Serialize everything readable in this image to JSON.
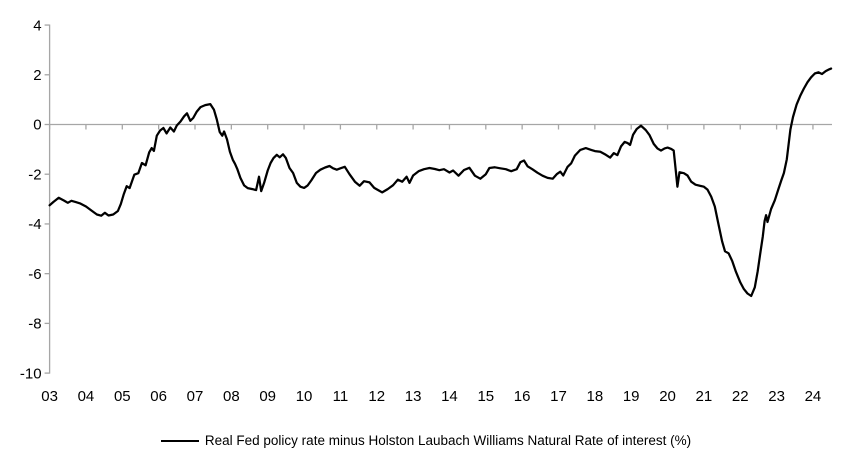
{
  "chart_data": {
    "type": "line",
    "title": "",
    "legend": "Real Fed policy rate minus Holston Laubach Williams Natural Rate of interest (%)",
    "line_color": "#000000",
    "axis_color": "#a6a6a6",
    "text_color": "#000000",
    "grid": "zero-line-only",
    "legend_position": "bottom-center",
    "y_axis": {
      "ticks": [
        4,
        2,
        0,
        -2,
        -4,
        -6,
        -8,
        -10
      ],
      "max": 4,
      "min": -10
    },
    "x_axis": {
      "tick_labels": [
        "03",
        "04",
        "05",
        "06",
        "07",
        "08",
        "09",
        "10",
        "11",
        "12",
        "13",
        "14",
        "15",
        "16",
        "17",
        "18",
        "19",
        "20",
        "21",
        "22",
        "23",
        "24"
      ],
      "tick_years": [
        2003,
        2004,
        2005,
        2006,
        2007,
        2008,
        2009,
        2010,
        2011,
        2012,
        2013,
        2014,
        2015,
        2016,
        2017,
        2018,
        2019,
        2020,
        2021,
        2022,
        2023,
        2024
      ]
    },
    "series": [
      {
        "name": "Real Fed policy rate minus Holston Laubach Williams Natural Rate of interest (%)",
        "points": [
          [
            2003.0,
            -3.25
          ],
          [
            2003.1,
            -3.12
          ],
          [
            2003.25,
            -2.95
          ],
          [
            2003.4,
            -3.06
          ],
          [
            2003.5,
            -3.15
          ],
          [
            2003.6,
            -3.07
          ],
          [
            2003.72,
            -3.12
          ],
          [
            2003.85,
            -3.18
          ],
          [
            2004.0,
            -3.3
          ],
          [
            2004.15,
            -3.46
          ],
          [
            2004.3,
            -3.62
          ],
          [
            2004.42,
            -3.67
          ],
          [
            2004.52,
            -3.55
          ],
          [
            2004.62,
            -3.66
          ],
          [
            2004.75,
            -3.62
          ],
          [
            2004.88,
            -3.48
          ],
          [
            2004.96,
            -3.2
          ],
          [
            2005.04,
            -2.8
          ],
          [
            2005.12,
            -2.48
          ],
          [
            2005.2,
            -2.56
          ],
          [
            2005.33,
            -2.02
          ],
          [
            2005.44,
            -1.96
          ],
          [
            2005.54,
            -1.55
          ],
          [
            2005.64,
            -1.64
          ],
          [
            2005.74,
            -1.12
          ],
          [
            2005.81,
            -0.95
          ],
          [
            2005.87,
            -1.06
          ],
          [
            2005.95,
            -0.45
          ],
          [
            2006.04,
            -0.24
          ],
          [
            2006.13,
            -0.14
          ],
          [
            2006.22,
            -0.36
          ],
          [
            2006.32,
            -0.12
          ],
          [
            2006.42,
            -0.28
          ],
          [
            2006.5,
            -0.04
          ],
          [
            2006.6,
            0.12
          ],
          [
            2006.7,
            0.33
          ],
          [
            2006.78,
            0.45
          ],
          [
            2006.87,
            0.15
          ],
          [
            2006.95,
            0.26
          ],
          [
            2007.05,
            0.52
          ],
          [
            2007.15,
            0.7
          ],
          [
            2007.28,
            0.78
          ],
          [
            2007.42,
            0.82
          ],
          [
            2007.52,
            0.6
          ],
          [
            2007.6,
            0.2
          ],
          [
            2007.68,
            -0.3
          ],
          [
            2007.75,
            -0.45
          ],
          [
            2007.8,
            -0.28
          ],
          [
            2007.88,
            -0.6
          ],
          [
            2007.96,
            -1.1
          ],
          [
            2008.04,
            -1.42
          ],
          [
            2008.1,
            -1.58
          ],
          [
            2008.16,
            -1.78
          ],
          [
            2008.25,
            -2.15
          ],
          [
            2008.35,
            -2.45
          ],
          [
            2008.45,
            -2.56
          ],
          [
            2008.58,
            -2.6
          ],
          [
            2008.68,
            -2.64
          ],
          [
            2008.76,
            -2.1
          ],
          [
            2008.82,
            -2.68
          ],
          [
            2008.9,
            -2.35
          ],
          [
            2009.0,
            -1.85
          ],
          [
            2009.08,
            -1.55
          ],
          [
            2009.16,
            -1.35
          ],
          [
            2009.25,
            -1.22
          ],
          [
            2009.33,
            -1.32
          ],
          [
            2009.42,
            -1.2
          ],
          [
            2009.5,
            -1.35
          ],
          [
            2009.6,
            -1.75
          ],
          [
            2009.7,
            -1.95
          ],
          [
            2009.8,
            -2.35
          ],
          [
            2009.9,
            -2.5
          ],
          [
            2010.0,
            -2.55
          ],
          [
            2010.1,
            -2.45
          ],
          [
            2010.2,
            -2.25
          ],
          [
            2010.33,
            -1.95
          ],
          [
            2010.45,
            -1.82
          ],
          [
            2010.58,
            -1.73
          ],
          [
            2010.7,
            -1.67
          ],
          [
            2010.8,
            -1.76
          ],
          [
            2010.9,
            -1.82
          ],
          [
            2011.0,
            -1.76
          ],
          [
            2011.12,
            -1.7
          ],
          [
            2011.25,
            -2.0
          ],
          [
            2011.4,
            -2.3
          ],
          [
            2011.53,
            -2.46
          ],
          [
            2011.65,
            -2.28
          ],
          [
            2011.8,
            -2.33
          ],
          [
            2011.93,
            -2.55
          ],
          [
            2012.05,
            -2.65
          ],
          [
            2012.15,
            -2.73
          ],
          [
            2012.3,
            -2.6
          ],
          [
            2012.45,
            -2.44
          ],
          [
            2012.58,
            -2.22
          ],
          [
            2012.7,
            -2.3
          ],
          [
            2012.82,
            -2.1
          ],
          [
            2012.9,
            -2.35
          ],
          [
            2013.0,
            -2.05
          ],
          [
            2013.15,
            -1.88
          ],
          [
            2013.3,
            -1.8
          ],
          [
            2013.45,
            -1.75
          ],
          [
            2013.6,
            -1.79
          ],
          [
            2013.72,
            -1.84
          ],
          [
            2013.85,
            -1.8
          ],
          [
            2014.0,
            -1.93
          ],
          [
            2014.1,
            -1.85
          ],
          [
            2014.25,
            -2.06
          ],
          [
            2014.4,
            -1.83
          ],
          [
            2014.55,
            -1.74
          ],
          [
            2014.7,
            -2.06
          ],
          [
            2014.85,
            -2.18
          ],
          [
            2015.0,
            -2.0
          ],
          [
            2015.1,
            -1.75
          ],
          [
            2015.25,
            -1.72
          ],
          [
            2015.4,
            -1.76
          ],
          [
            2015.55,
            -1.8
          ],
          [
            2015.7,
            -1.88
          ],
          [
            2015.85,
            -1.8
          ],
          [
            2015.95,
            -1.52
          ],
          [
            2016.05,
            -1.45
          ],
          [
            2016.15,
            -1.68
          ],
          [
            2016.28,
            -1.8
          ],
          [
            2016.42,
            -1.94
          ],
          [
            2016.56,
            -2.06
          ],
          [
            2016.7,
            -2.15
          ],
          [
            2016.84,
            -2.18
          ],
          [
            2016.95,
            -2.0
          ],
          [
            2017.05,
            -1.9
          ],
          [
            2017.13,
            -2.05
          ],
          [
            2017.25,
            -1.7
          ],
          [
            2017.35,
            -1.56
          ],
          [
            2017.45,
            -1.25
          ],
          [
            2017.6,
            -1.02
          ],
          [
            2017.75,
            -0.95
          ],
          [
            2017.9,
            -1.02
          ],
          [
            2018.0,
            -1.07
          ],
          [
            2018.15,
            -1.1
          ],
          [
            2018.3,
            -1.22
          ],
          [
            2018.42,
            -1.33
          ],
          [
            2018.52,
            -1.15
          ],
          [
            2018.62,
            -1.23
          ],
          [
            2018.72,
            -0.88
          ],
          [
            2018.82,
            -0.7
          ],
          [
            2018.9,
            -0.75
          ],
          [
            2018.97,
            -0.82
          ],
          [
            2019.05,
            -0.42
          ],
          [
            2019.15,
            -0.18
          ],
          [
            2019.27,
            -0.05
          ],
          [
            2019.4,
            -0.22
          ],
          [
            2019.5,
            -0.42
          ],
          [
            2019.62,
            -0.78
          ],
          [
            2019.72,
            -0.96
          ],
          [
            2019.82,
            -1.05
          ],
          [
            2019.92,
            -0.96
          ],
          [
            2020.0,
            -0.93
          ],
          [
            2020.1,
            -0.98
          ],
          [
            2020.17,
            -1.05
          ],
          [
            2020.23,
            -1.9
          ],
          [
            2020.27,
            -2.5
          ],
          [
            2020.33,
            -1.92
          ],
          [
            2020.45,
            -1.96
          ],
          [
            2020.55,
            -2.05
          ],
          [
            2020.65,
            -2.3
          ],
          [
            2020.77,
            -2.42
          ],
          [
            2020.9,
            -2.47
          ],
          [
            2021.0,
            -2.5
          ],
          [
            2021.1,
            -2.62
          ],
          [
            2021.2,
            -2.9
          ],
          [
            2021.3,
            -3.3
          ],
          [
            2021.4,
            -4.0
          ],
          [
            2021.5,
            -4.7
          ],
          [
            2021.58,
            -5.1
          ],
          [
            2021.68,
            -5.18
          ],
          [
            2021.78,
            -5.5
          ],
          [
            2021.88,
            -5.92
          ],
          [
            2022.0,
            -6.35
          ],
          [
            2022.1,
            -6.62
          ],
          [
            2022.2,
            -6.8
          ],
          [
            2022.3,
            -6.9
          ],
          [
            2022.4,
            -6.55
          ],
          [
            2022.48,
            -5.9
          ],
          [
            2022.55,
            -5.2
          ],
          [
            2022.62,
            -4.5
          ],
          [
            2022.67,
            -3.88
          ],
          [
            2022.71,
            -3.65
          ],
          [
            2022.75,
            -3.92
          ],
          [
            2022.85,
            -3.4
          ],
          [
            2022.95,
            -3.05
          ],
          [
            2023.05,
            -2.6
          ],
          [
            2023.13,
            -2.25
          ],
          [
            2023.2,
            -1.95
          ],
          [
            2023.28,
            -1.4
          ],
          [
            2023.33,
            -0.8
          ],
          [
            2023.38,
            -0.2
          ],
          [
            2023.45,
            0.3
          ],
          [
            2023.55,
            0.8
          ],
          [
            2023.65,
            1.15
          ],
          [
            2023.75,
            1.45
          ],
          [
            2023.85,
            1.7
          ],
          [
            2023.95,
            1.9
          ],
          [
            2024.05,
            2.05
          ],
          [
            2024.15,
            2.1
          ],
          [
            2024.25,
            2.03
          ],
          [
            2024.35,
            2.15
          ],
          [
            2024.45,
            2.22
          ],
          [
            2024.5,
            2.25
          ]
        ]
      }
    ]
  }
}
